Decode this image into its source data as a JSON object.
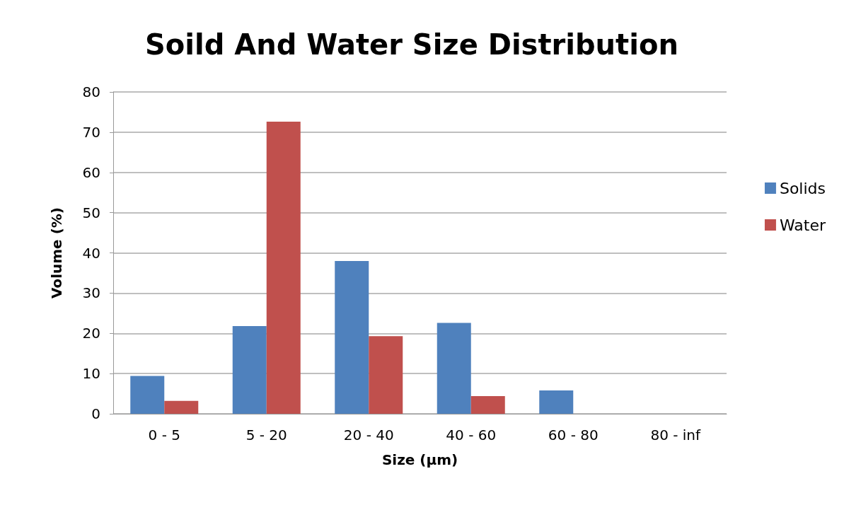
{
  "chart_data": {
    "type": "bar",
    "title": "Soild And Water Size Distribution",
    "xlabel": "Size (µm)",
    "ylabel": "Volume (%)",
    "categories": [
      "0 - 5",
      "5 - 20",
      "20 - 40",
      "40 - 60",
      "60 - 80",
      "80 - inf"
    ],
    "series": [
      {
        "name": "Solids",
        "color": "#4f81bd",
        "values": [
          9.4,
          21.8,
          38.0,
          22.6,
          5.8,
          0
        ]
      },
      {
        "name": "Water",
        "color": "#c0504d",
        "values": [
          3.2,
          72.6,
          19.3,
          4.4,
          0,
          0
        ]
      }
    ],
    "ylim": [
      0,
      80
    ],
    "yticks": [
      0,
      10,
      20,
      30,
      40,
      50,
      60,
      70,
      80
    ],
    "grid": "y",
    "legend": "right"
  }
}
